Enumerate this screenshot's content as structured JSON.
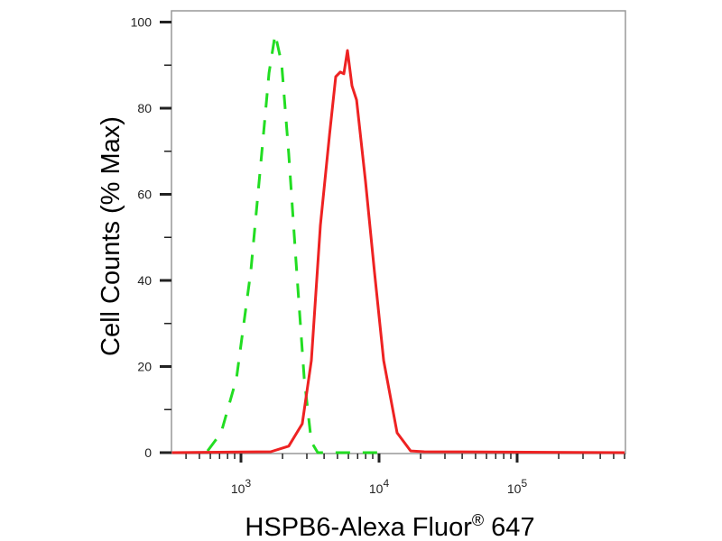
{
  "chart_data": {
    "type": "line",
    "title": "",
    "xlabel": "HSPB6-Alexa Fluor",
    "xlabel_superscript": "®",
    "xlabel_suffix": " 647",
    "ylabel": "Cell Counts (% Max)",
    "x_scale": "log",
    "xlim": [
      316,
      600000
    ],
    "ylim": [
      0,
      100
    ],
    "grid": false,
    "x_ticks": [
      {
        "value": 1000,
        "base": "10",
        "exp": "3"
      },
      {
        "value": 10000,
        "base": "10",
        "exp": "4"
      },
      {
        "value": 100000,
        "base": "10",
        "exp": "5"
      }
    ],
    "y_ticks": [
      0,
      20,
      40,
      60,
      80,
      100
    ],
    "y_tick_labels": [
      "0",
      "20",
      "40",
      "60",
      "80",
      "100"
    ],
    "series": [
      {
        "color": "#22dd22",
        "style": "dashed",
        "x": [
          573,
          718,
          927,
          1180,
          1413,
          1596,
          1770,
          1968,
          2218,
          2506,
          2871,
          3236,
          3597,
          10000
        ],
        "y": [
          0.4,
          4.6,
          17.2,
          42.3,
          69.5,
          88.2,
          97.2,
          90.5,
          69.5,
          44.4,
          17.2,
          2.5,
          0,
          0
        ]
      },
      {
        "color": "#ee2222",
        "style": "solid",
        "x": [
          316,
          1644,
          2218,
          2780,
          3236,
          3758,
          4375,
          4853,
          5236,
          5559,
          5902,
          6368,
          6871,
          7980,
          9268,
          10790,
          13520,
          16940,
          21230,
          600000
        ],
        "y": [
          0,
          0.2,
          1.5,
          6.7,
          21.4,
          52.8,
          73.8,
          87.3,
          88.4,
          88.0,
          93.4,
          85.2,
          81.9,
          63,
          42,
          21.4,
          4.6,
          0.4,
          0.2,
          0
        ]
      }
    ]
  }
}
